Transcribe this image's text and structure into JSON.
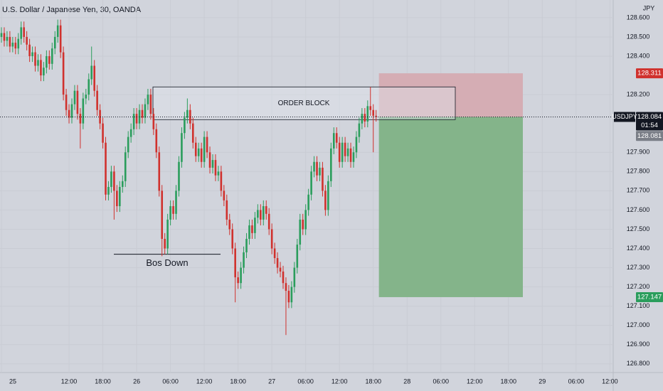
{
  "chart_data": {
    "type": "candlestick",
    "title": "U.S. Dollar / Japanese Yen, 30, OANDA",
    "currency": "JPY",
    "symbol": "USDJPY",
    "countdown": "01:54",
    "up_color": "#2a9d5c",
    "down_color": "#d0312d",
    "grid": true,
    "categories": [
      "25",
      null,
      null,
      null,
      null,
      null,
      null,
      null,
      null,
      null,
      null,
      null,
      null,
      null,
      null,
      null,
      null,
      null,
      null,
      null,
      null,
      null,
      null,
      null,
      "12:00",
      null,
      null,
      null,
      null,
      null,
      null,
      null,
      null,
      null,
      null,
      null,
      "18:00",
      null,
      null,
      null,
      null,
      null,
      null,
      null,
      null,
      null,
      null,
      null,
      "26",
      null,
      null,
      null,
      null,
      null,
      null,
      null,
      null,
      null,
      null,
      null,
      "06:00",
      null,
      null,
      null,
      null,
      null,
      null,
      null,
      null,
      null,
      null,
      null,
      "12:00",
      null,
      null,
      null,
      null,
      null,
      null,
      null,
      null,
      null,
      null,
      null,
      "18:00",
      null,
      null,
      null,
      null,
      null,
      null,
      null,
      null,
      null,
      null,
      null,
      "27",
      null,
      null,
      null,
      null,
      null,
      null,
      null,
      null,
      null,
      null,
      null,
      "06:00",
      null,
      null,
      null,
      null,
      null,
      null,
      null,
      null,
      null,
      null,
      null,
      "12:00",
      null,
      null,
      null,
      null,
      null,
      null,
      null,
      null,
      null,
      null,
      null,
      "18:00",
      null,
      null,
      null,
      null,
      null,
      null,
      null,
      null,
      null,
      null,
      null,
      "28",
      null,
      null,
      null,
      null,
      null,
      null,
      null,
      null,
      null,
      null,
      null,
      "06:00",
      null,
      null,
      null,
      null,
      null,
      null,
      null,
      null,
      null,
      null,
      null,
      "12:00",
      null,
      null,
      null,
      null,
      null,
      null,
      null,
      null,
      null,
      null,
      null,
      "18:00",
      null,
      null,
      null,
      null,
      null,
      null,
      null,
      null,
      null,
      null,
      null,
      "29",
      null,
      null,
      null,
      null,
      null,
      null,
      null,
      null,
      null,
      null,
      null,
      "06:00",
      null,
      null,
      null,
      null,
      null,
      null,
      null,
      null,
      null,
      null,
      null,
      "12:00"
    ],
    "open": [
      128.5,
      128.52,
      128.48,
      128.5,
      128.45,
      128.47,
      128.44,
      128.49,
      128.55,
      128.5,
      128.46,
      128.4,
      128.42,
      128.35,
      128.38,
      128.3,
      128.34,
      128.4,
      128.36,
      128.44,
      128.5,
      128.56,
      128.42,
      128.2,
      128.12,
      128.08,
      128.15,
      128.22,
      128.1,
      128.05,
      128.18,
      128.2,
      128.28,
      128.35,
      128.22,
      128.12,
      128.05,
      127.95,
      127.68,
      127.72,
      127.8,
      127.7,
      127.62,
      127.72,
      127.75,
      127.9,
      127.98,
      128.02,
      128.1,
      128.05,
      128.12,
      128.08,
      128.15,
      128.2,
      128.1,
      128.02,
      127.9,
      127.7,
      127.45,
      127.4,
      127.55,
      127.62,
      127.58,
      127.7,
      127.85,
      128.0,
      128.08,
      128.12,
      128.05,
      127.95,
      127.88,
      127.92,
      127.85,
      127.98,
      127.9,
      127.82,
      127.86,
      127.78,
      127.8,
      127.7,
      127.65,
      127.55,
      127.5,
      127.4,
      127.25,
      127.22,
      127.3,
      127.38,
      127.45,
      127.52,
      127.48,
      127.56,
      127.6,
      127.55,
      127.62,
      127.58,
      127.5,
      127.4,
      127.35,
      127.3,
      127.28,
      127.22,
      127.18,
      127.12,
      127.2,
      127.3,
      127.42,
      127.55,
      127.5,
      127.6,
      127.68,
      127.8,
      127.85,
      127.78,
      127.82,
      127.7,
      127.6,
      127.75,
      127.92,
      128.0,
      127.95,
      127.85,
      127.95,
      127.88,
      127.92,
      127.85,
      127.9,
      127.98,
      128.05,
      128.1,
      128.06,
      128.14,
      128.12,
      128.09,
      null,
      null,
      null,
      null,
      null,
      null,
      null,
      null,
      null,
      null,
      null,
      null,
      null,
      null,
      null,
      null,
      null,
      null,
      null,
      null,
      null,
      null,
      null,
      null,
      null,
      null,
      null,
      null,
      null,
      null,
      null,
      null,
      null,
      null,
      null,
      null,
      null,
      null,
      null,
      null,
      null,
      null,
      null,
      null,
      null,
      null,
      null,
      null,
      null,
      null,
      null,
      null,
      null,
      null,
      null,
      null,
      null,
      null,
      null,
      null,
      null,
      null,
      null,
      null,
      null,
      null,
      null,
      null,
      null,
      null,
      null,
      null,
      null,
      null,
      null,
      null,
      null,
      null,
      null,
      null,
      null,
      null,
      null
    ],
    "high": [
      128.55,
      128.55,
      128.53,
      128.53,
      128.5,
      128.5,
      128.52,
      128.58,
      128.58,
      128.53,
      128.49,
      128.45,
      128.45,
      128.41,
      128.41,
      128.37,
      128.43,
      128.43,
      128.47,
      128.53,
      128.59,
      128.59,
      128.45,
      128.23,
      128.15,
      128.18,
      128.25,
      128.25,
      128.13,
      128.21,
      128.23,
      128.31,
      128.45,
      128.38,
      128.25,
      128.15,
      128.08,
      127.98,
      127.75,
      127.83,
      127.83,
      127.73,
      127.75,
      127.78,
      127.93,
      128.01,
      128.05,
      128.13,
      128.13,
      128.15,
      128.15,
      128.18,
      128.23,
      128.23,
      128.13,
      128.05,
      127.93,
      127.73,
      127.48,
      127.58,
      127.65,
      127.65,
      127.73,
      127.88,
      128.03,
      128.11,
      128.18,
      128.15,
      128.08,
      127.98,
      127.95,
      127.95,
      128.01,
      128.01,
      127.93,
      127.89,
      127.89,
      127.83,
      127.83,
      127.73,
      127.68,
      127.58,
      127.53,
      127.43,
      127.28,
      127.33,
      127.41,
      127.48,
      127.55,
      127.55,
      127.59,
      127.63,
      127.63,
      127.65,
      127.65,
      127.61,
      127.53,
      127.43,
      127.38,
      127.33,
      127.31,
      127.25,
      127.21,
      127.23,
      127.33,
      127.45,
      127.58,
      127.58,
      127.63,
      127.71,
      127.83,
      127.88,
      127.88,
      127.85,
      127.85,
      127.73,
      127.78,
      127.95,
      128.03,
      128.03,
      127.98,
      127.98,
      127.98,
      127.95,
      127.95,
      127.93,
      128.01,
      128.08,
      128.13,
      128.13,
      128.17,
      128.24,
      128.15,
      128.12,
      null,
      null,
      null,
      null,
      null,
      null,
      null,
      null,
      null,
      null,
      null,
      null,
      null,
      null,
      null,
      null,
      null,
      null,
      null,
      null,
      null,
      null,
      null,
      null,
      null,
      null,
      null,
      null,
      null,
      null,
      null,
      null,
      null,
      null,
      null,
      null,
      null,
      null,
      null,
      null,
      null,
      null,
      null,
      null,
      null,
      null,
      null,
      null,
      null,
      null,
      null,
      null,
      null,
      null,
      null,
      null,
      null,
      null,
      null,
      null,
      null,
      null,
      null,
      null,
      null,
      null,
      null,
      null,
      null,
      null,
      null,
      null,
      null,
      null,
      null,
      null,
      null,
      null,
      null,
      null,
      null,
      null,
      null
    ],
    "low": [
      128.47,
      128.45,
      128.45,
      128.42,
      128.42,
      128.41,
      128.41,
      128.46,
      128.47,
      128.43,
      128.37,
      128.37,
      128.32,
      128.32,
      128.27,
      128.27,
      128.31,
      128.33,
      128.33,
      128.41,
      128.47,
      128.39,
      128.17,
      128.09,
      128.05,
      128.05,
      128.12,
      128.07,
      127.92,
      128.02,
      128.15,
      128.17,
      128.25,
      128.19,
      128.09,
      128.02,
      127.92,
      127.65,
      127.65,
      127.69,
      127.55,
      127.59,
      127.59,
      127.69,
      127.72,
      127.87,
      127.95,
      127.99,
      128.02,
      128.02,
      128.05,
      128.05,
      128.12,
      128.07,
      127.99,
      127.87,
      127.67,
      127.36,
      127.37,
      127.37,
      127.52,
      127.55,
      127.55,
      127.67,
      127.82,
      127.97,
      128.05,
      128.02,
      127.92,
      127.85,
      127.85,
      127.82,
      127.82,
      127.87,
      127.79,
      127.79,
      127.75,
      127.75,
      127.67,
      127.62,
      127.52,
      127.47,
      127.37,
      127.12,
      127.19,
      127.19,
      127.27,
      127.35,
      127.42,
      127.45,
      127.45,
      127.53,
      127.52,
      127.52,
      127.55,
      127.47,
      127.37,
      127.32,
      127.27,
      127.25,
      127.19,
      126.95,
      127.09,
      127.09,
      127.17,
      127.27,
      127.39,
      127.47,
      127.47,
      127.57,
      127.65,
      127.77,
      127.75,
      127.75,
      127.67,
      127.57,
      127.57,
      127.72,
      127.89,
      127.92,
      127.82,
      127.82,
      127.85,
      127.85,
      127.82,
      127.82,
      127.87,
      127.95,
      128.02,
      128.03,
      128.03,
      128.09,
      127.9,
      128.06,
      null,
      null,
      null,
      null,
      null,
      null,
      null,
      null,
      null,
      null,
      null,
      null,
      null,
      null,
      null,
      null,
      null,
      null,
      null,
      null,
      null,
      null,
      null,
      null,
      null,
      null,
      null,
      null,
      null,
      null,
      null,
      null,
      null,
      null,
      null,
      null,
      null,
      null,
      null,
      null,
      null,
      null,
      null,
      null,
      null,
      null,
      null,
      null,
      null,
      null,
      null,
      null,
      null,
      null,
      null,
      null,
      null,
      null,
      null,
      null,
      null,
      null,
      null,
      null,
      null,
      null,
      null,
      null,
      null,
      null,
      null,
      null,
      null,
      null,
      null,
      null,
      null,
      null,
      null,
      null,
      null,
      null,
      null
    ],
    "close": [
      128.52,
      128.48,
      128.5,
      128.45,
      128.47,
      128.44,
      128.49,
      128.55,
      128.5,
      128.46,
      128.4,
      128.42,
      128.35,
      128.38,
      128.3,
      128.34,
      128.4,
      128.36,
      128.44,
      128.5,
      128.56,
      128.42,
      128.2,
      128.12,
      128.08,
      128.15,
      128.22,
      128.1,
      128.05,
      128.18,
      128.2,
      128.28,
      128.35,
      128.22,
      128.12,
      128.05,
      127.95,
      127.68,
      127.72,
      127.8,
      127.7,
      127.62,
      127.72,
      127.75,
      127.9,
      127.98,
      128.02,
      128.1,
      128.05,
      128.12,
      128.08,
      128.15,
      128.2,
      128.1,
      128.02,
      127.9,
      127.7,
      127.45,
      127.4,
      127.55,
      127.62,
      127.58,
      127.7,
      127.85,
      128.0,
      128.08,
      128.12,
      128.05,
      127.95,
      127.88,
      127.92,
      127.85,
      127.98,
      127.9,
      127.82,
      127.86,
      127.78,
      127.8,
      127.7,
      127.65,
      127.55,
      127.5,
      127.4,
      127.25,
      127.22,
      127.3,
      127.38,
      127.45,
      127.52,
      127.48,
      127.56,
      127.6,
      127.55,
      127.62,
      127.58,
      127.5,
      127.4,
      127.35,
      127.3,
      127.28,
      127.22,
      127.18,
      127.12,
      127.2,
      127.3,
      127.42,
      127.55,
      127.5,
      127.6,
      127.68,
      127.8,
      127.85,
      127.78,
      127.82,
      127.7,
      127.6,
      127.75,
      127.92,
      128.0,
      127.95,
      127.85,
      127.95,
      127.88,
      127.92,
      127.85,
      127.9,
      127.98,
      128.05,
      128.1,
      128.06,
      128.14,
      128.12,
      128.09,
      128.084,
      null,
      null,
      null,
      null,
      null,
      null,
      null,
      null,
      null,
      null,
      null,
      null,
      null,
      null,
      null,
      null,
      null,
      null,
      null,
      null,
      null,
      null,
      null,
      null,
      null,
      null,
      null,
      null,
      null,
      null,
      null,
      null,
      null,
      null,
      null,
      null,
      null,
      null,
      null,
      null,
      null,
      null,
      null,
      null,
      null,
      null,
      null,
      null,
      null,
      null,
      null,
      null,
      null,
      null,
      null,
      null,
      null,
      null,
      null,
      null,
      null,
      null,
      null,
      null,
      null,
      null,
      null,
      null,
      null,
      null,
      null,
      null,
      null,
      null,
      null,
      null,
      null,
      null,
      null,
      null,
      null,
      null,
      null
    ],
    "ylim": [
      126.755,
      128.692
    ],
    "yticks": [
      {
        "value": 126.8,
        "label": "126.800"
      },
      {
        "value": 126.9,
        "label": "126.900"
      },
      {
        "value": 127.0,
        "label": "127.000"
      },
      {
        "value": 127.1,
        "label": "127.100"
      },
      {
        "value": 127.2,
        "label": "127.200"
      },
      {
        "value": 127.3,
        "label": "127.300"
      },
      {
        "value": 127.4,
        "label": "127.400"
      },
      {
        "value": 127.5,
        "label": "127.500"
      },
      {
        "value": 127.6,
        "label": "127.600"
      },
      {
        "value": 127.7,
        "label": "127.700"
      },
      {
        "value": 127.8,
        "label": "127.800"
      },
      {
        "value": 127.9,
        "label": "127.900"
      },
      {
        "value": 128.2,
        "label": "128.200"
      },
      {
        "value": 128.4,
        "label": "128.400"
      },
      {
        "value": 128.5,
        "label": "128.500"
      },
      {
        "value": 128.6,
        "label": "128.600"
      }
    ],
    "order_block": {
      "label": "ORDER BLOCK",
      "top": 128.24,
      "bottom": 128.07
    },
    "bos": {
      "label": "Bos Down",
      "value": 127.37
    },
    "position": {
      "stop": {
        "value": 128.311,
        "label": "128.311"
      },
      "target": {
        "value": 127.147,
        "label": "127.147"
      },
      "stop_color": "#d5adb4",
      "target_color": "#84b48a"
    },
    "last_price": {
      "value": 128.084,
      "label": "128.084"
    },
    "bid": {
      "value": 128.081,
      "label": "128.081"
    }
  }
}
